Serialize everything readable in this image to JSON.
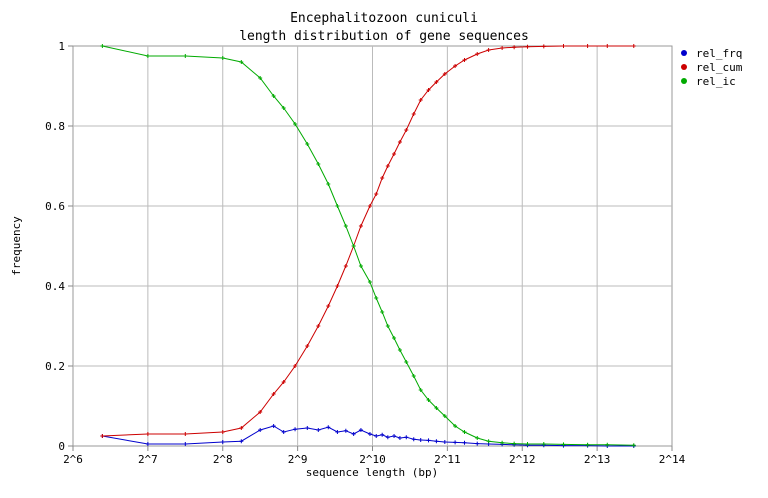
{
  "chart_data": {
    "type": "line",
    "title_lines": [
      "Encephalitozoon cuniculi",
      "length distribution of gene sequences"
    ],
    "xlabel": "sequence length (bp)",
    "ylabel": "frequency",
    "x_scale": "log2",
    "xlim": [
      64,
      16384
    ],
    "ylim": [
      0,
      1
    ],
    "x_ticks": [
      64,
      128,
      256,
      512,
      1024,
      2048,
      4096,
      8192,
      16384
    ],
    "x_tick_labels": [
      "2^6",
      "2^7",
      "2^8",
      "2^9",
      "2^10",
      "2^11",
      "2^12",
      "2^13",
      "2^14"
    ],
    "y_ticks": [
      0,
      0.2,
      0.4,
      0.6,
      0.8,
      1
    ],
    "y_tick_labels": [
      "0",
      "0.2",
      "0.4",
      "0.6",
      "0.8",
      "1"
    ],
    "grid": true,
    "legend_position": "right-top",
    "series": [
      {
        "name": "rel_frq",
        "color": "#0000cc",
        "points": [
          [
            84,
            0.025
          ],
          [
            128,
            0.005
          ],
          [
            181,
            0.005
          ],
          [
            256,
            0.01
          ],
          [
            304,
            0.012
          ],
          [
            362,
            0.04
          ],
          [
            410,
            0.05
          ],
          [
            450,
            0.035
          ],
          [
            500,
            0.042
          ],
          [
            560,
            0.045
          ],
          [
            620,
            0.04
          ],
          [
            680,
            0.047
          ],
          [
            740,
            0.035
          ],
          [
            800,
            0.038
          ],
          [
            860,
            0.03
          ],
          [
            920,
            0.04
          ],
          [
            1000,
            0.03
          ],
          [
            1060,
            0.025
          ],
          [
            1120,
            0.028
          ],
          [
            1180,
            0.022
          ],
          [
            1250,
            0.025
          ],
          [
            1320,
            0.02
          ],
          [
            1400,
            0.022
          ],
          [
            1500,
            0.017
          ],
          [
            1600,
            0.015
          ],
          [
            1720,
            0.014
          ],
          [
            1850,
            0.012
          ],
          [
            2000,
            0.01
          ],
          [
            2200,
            0.009
          ],
          [
            2400,
            0.008
          ],
          [
            2700,
            0.006
          ],
          [
            3000,
            0.005
          ],
          [
            3400,
            0.004
          ],
          [
            3800,
            0.003
          ],
          [
            4300,
            0.002
          ],
          [
            5000,
            0.002
          ],
          [
            6000,
            0.001
          ],
          [
            7500,
            0.001
          ],
          [
            9000,
            0.0
          ],
          [
            11500,
            0.0
          ]
        ]
      },
      {
        "name": "rel_cum",
        "color": "#cc0000",
        "points": [
          [
            84,
            0.025
          ],
          [
            128,
            0.03
          ],
          [
            181,
            0.03
          ],
          [
            256,
            0.035
          ],
          [
            304,
            0.045
          ],
          [
            362,
            0.085
          ],
          [
            410,
            0.13
          ],
          [
            450,
            0.16
          ],
          [
            500,
            0.2
          ],
          [
            560,
            0.25
          ],
          [
            620,
            0.3
          ],
          [
            680,
            0.35
          ],
          [
            740,
            0.4
          ],
          [
            800,
            0.45
          ],
          [
            860,
            0.5
          ],
          [
            920,
            0.55
          ],
          [
            1000,
            0.6
          ],
          [
            1060,
            0.63
          ],
          [
            1120,
            0.67
          ],
          [
            1180,
            0.7
          ],
          [
            1250,
            0.73
          ],
          [
            1320,
            0.76
          ],
          [
            1400,
            0.79
          ],
          [
            1500,
            0.83
          ],
          [
            1600,
            0.865
          ],
          [
            1720,
            0.89
          ],
          [
            1850,
            0.91
          ],
          [
            2000,
            0.93
          ],
          [
            2200,
            0.95
          ],
          [
            2400,
            0.965
          ],
          [
            2700,
            0.98
          ],
          [
            3000,
            0.99
          ],
          [
            3400,
            0.995
          ],
          [
            3800,
            0.997
          ],
          [
            4300,
            0.998
          ],
          [
            5000,
            0.999
          ],
          [
            6000,
            1.0
          ],
          [
            7500,
            1.0
          ],
          [
            9000,
            1.0
          ],
          [
            11500,
            1.0
          ]
        ]
      },
      {
        "name": "rel_ic",
        "color": "#00aa00",
        "points": [
          [
            84,
            1.0
          ],
          [
            128,
            0.975
          ],
          [
            181,
            0.975
          ],
          [
            256,
            0.97
          ],
          [
            304,
            0.96
          ],
          [
            362,
            0.92
          ],
          [
            410,
            0.875
          ],
          [
            450,
            0.845
          ],
          [
            500,
            0.805
          ],
          [
            560,
            0.755
          ],
          [
            620,
            0.705
          ],
          [
            680,
            0.655
          ],
          [
            740,
            0.6
          ],
          [
            800,
            0.55
          ],
          [
            860,
            0.5
          ],
          [
            920,
            0.45
          ],
          [
            1000,
            0.41
          ],
          [
            1060,
            0.37
          ],
          [
            1120,
            0.335
          ],
          [
            1180,
            0.3
          ],
          [
            1250,
            0.27
          ],
          [
            1320,
            0.24
          ],
          [
            1400,
            0.21
          ],
          [
            1500,
            0.175
          ],
          [
            1600,
            0.14
          ],
          [
            1720,
            0.115
          ],
          [
            1850,
            0.095
          ],
          [
            2000,
            0.075
          ],
          [
            2200,
            0.05
          ],
          [
            2400,
            0.035
          ],
          [
            2700,
            0.02
          ],
          [
            3000,
            0.012
          ],
          [
            3400,
            0.008
          ],
          [
            3800,
            0.006
          ],
          [
            4300,
            0.005
          ],
          [
            5000,
            0.005
          ],
          [
            6000,
            0.004
          ],
          [
            7500,
            0.003
          ],
          [
            9000,
            0.003
          ],
          [
            11500,
            0.002
          ]
        ]
      }
    ]
  }
}
